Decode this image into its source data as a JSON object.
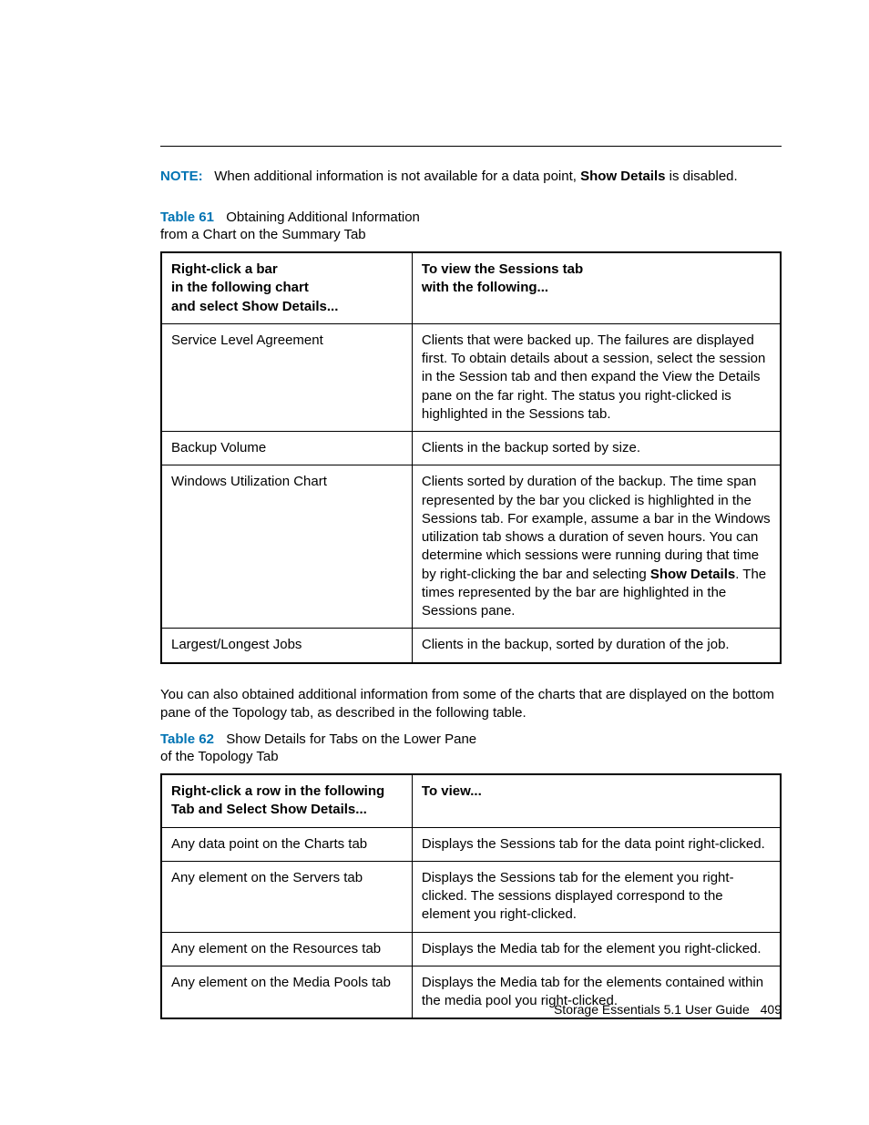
{
  "colors": {
    "accent": "#0073b3",
    "text": "#000000",
    "border": "#000000",
    "background": "#ffffff"
  },
  "note": {
    "label": "NOTE:",
    "before": "When additional information is not available for a data point, ",
    "bold": "Show Details",
    "after": " is disabled."
  },
  "table61": {
    "label": "Table 61",
    "title_line1": "Obtaining Additional Information",
    "title_line2": "from a Chart on the Summary Tab",
    "header_left_l1": "Right-click a bar",
    "header_left_l2": "in the following chart",
    "header_left_l3": "and select Show Details...",
    "header_right_l1": "To view the Sessions tab",
    "header_right_l2": "with the following...",
    "rows": [
      {
        "left": "Service Level Agreement",
        "right": "Clients that were backed up. The failures are displayed first. To obtain details about a session, select the session in the Session tab and then expand the View the Details pane on the far right. The status you right-clicked is highlighted in the Sessions tab."
      },
      {
        "left": "Backup Volume",
        "right": "Clients in the backup sorted by size."
      },
      {
        "left": "Windows Utilization Chart",
        "right_pre": "Clients sorted by duration of the backup. The time span represented by the bar you clicked is highlighted in the Sessions tab. For example, assume a bar in the Windows utilization tab shows a duration of seven hours. You can determine which sessions were running during that time by right-clicking the bar and selecting ",
        "right_bold": "Show Details",
        "right_post": ". The times represented by the bar are highlighted in the Sessions pane."
      },
      {
        "left": "Largest/Longest Jobs",
        "right": "Clients in the backup, sorted by duration of the job."
      }
    ]
  },
  "mid_paragraph": "You can also obtained additional information from some of the charts that are displayed on the bottom pane of the Topology tab, as described in the following table.",
  "table62": {
    "label": "Table 62",
    "title_line1": "Show Details for Tabs on the Lower Pane",
    "title_line2": "of the Topology Tab",
    "header_left": "Right-click a row in the following Tab and Select Show Details...",
    "header_right": "To view...",
    "rows": [
      {
        "left": "Any data point on the Charts tab",
        "right": "Displays the Sessions tab for the data point right-clicked."
      },
      {
        "left": "Any element on the Servers tab",
        "right": "Displays the Sessions tab for the element you right-clicked. The sessions displayed correspond to the element you right-clicked."
      },
      {
        "left": "Any element on the Resources tab",
        "right": "Displays the Media tab for the element you right-clicked."
      },
      {
        "left": "Any element on the Media Pools tab",
        "right": "Displays the Media tab for the elements contained within the media pool you right-clicked."
      }
    ]
  },
  "footer": {
    "text": "Storage Essentials 5.1 User Guide",
    "page_number": "409"
  }
}
